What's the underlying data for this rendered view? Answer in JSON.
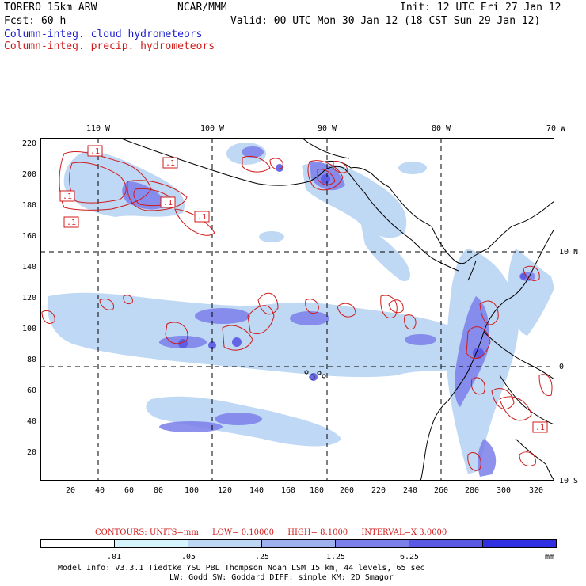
{
  "header": {
    "model": "TORERO  15km ARW",
    "org": "NCAR/MMM",
    "init": "Init: 12 UTC Fri 27 Jan 12",
    "fcst": "Fcst:   60 h",
    "valid": "Valid: 00 UTC Mon 30 Jan 12 (18 CST Sun 29 Jan 12)",
    "field_cloud": "Column-integ. cloud hydrometeors",
    "field_precip": "Column-integ. precip. hydrometeors"
  },
  "lon_labels": [
    "110 W",
    "100 W",
    "90 W",
    "80 W",
    "70 W"
  ],
  "lat_labels": [
    "10 N",
    "0",
    "10 S"
  ],
  "y_ticks": [
    "220",
    "200",
    "180",
    "160",
    "140",
    "120",
    "100",
    "80",
    "60",
    "40",
    "20"
  ],
  "x_ticks": [
    "20",
    "40",
    "60",
    "80",
    "100",
    "120",
    "140",
    "160",
    "180",
    "200",
    "220",
    "240",
    "260",
    "280",
    "300",
    "320"
  ],
  "contour_labels": [
    ".1",
    ".1",
    ".1",
    ".1",
    ".1",
    ".1",
    ".1"
  ],
  "contour_info": {
    "units": "CONTOURS:  UNITS=mm",
    "low": "LOW=  0.10000",
    "high": "HIGH=   8.1000",
    "interval": "INTERVAL=X  3.0000"
  },
  "colorbar": {
    "colors": [
      "#ffffff",
      "#d6f4fb",
      "#bcd6f4",
      "#9fb0ef",
      "#7b7fea",
      "#5a59e4",
      "#2f2ee0"
    ],
    "labels": [
      ".01",
      ".05",
      ".25",
      "1.25",
      "6.25"
    ],
    "unit": "mm"
  },
  "footer": {
    "line1": "Model Info: V3.3.1   Tiedtke YSU PBL  Thompson     Noah LSM  15 km,   44 levels,   65 sec",
    "line2": "LW: Godd SW: Goddard DIFF: simple KM: 2D Smagor"
  },
  "colors": {
    "cloud_fill": "#9fb0ef",
    "cloud_dark": "#5a59e4",
    "precip_contour": "#d01a1a",
    "coast": "#000000"
  }
}
